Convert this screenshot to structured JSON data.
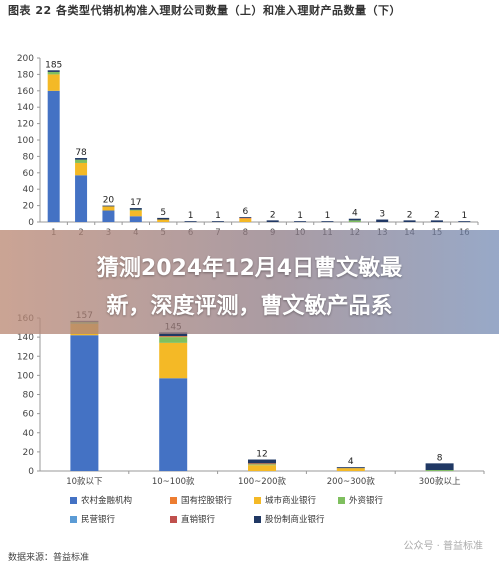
{
  "title": "图表 22 各类型代销机构准入理财公司数量（上）和准入理财产品数量（下）",
  "banner": {
    "line1": "猜测2024年12月4日曹文敏最",
    "line2": "新，深度评测，曹文敏产品系"
  },
  "source": "数据来源：普益标准",
  "watermark": "公众号 · 普益标准",
  "colors": {
    "农村金融机构": "#4472c4",
    "国有控股银行": "#ed7d31",
    "城市商业银行": "#f4b926",
    "外资银行": "#7fbf5f",
    "民营银行": "#5b9bd5",
    "直销银行": "#c0504d",
    "股份制商业银行": "#203864"
  },
  "legend": [
    {
      "name": "农村金融机构",
      "color": "#4472c4"
    },
    {
      "name": "国有控股银行",
      "color": "#ed7d31"
    },
    {
      "name": "城市商业银行",
      "color": "#f4b926"
    },
    {
      "name": "外资银行",
      "color": "#7fbf5f"
    },
    {
      "name": "民营银行",
      "color": "#5b9bd5"
    },
    {
      "name": "直销银行",
      "color": "#c0504d"
    },
    {
      "name": "股份制商业银行",
      "color": "#203864"
    }
  ],
  "chart_data": [
    {
      "type": "bar",
      "stacked": true,
      "categories": [
        "1",
        "2",
        "3",
        "4",
        "5",
        "6",
        "7",
        "8",
        "9",
        "10",
        "11",
        "12",
        "13",
        "14",
        "15",
        "16"
      ],
      "totals": [
        185,
        78,
        20,
        17,
        5,
        1,
        1,
        6,
        2,
        1,
        1,
        4,
        3,
        2,
        2,
        1
      ],
      "series": [
        {
          "name": "农村金融机构",
          "values": [
            160,
            57,
            14,
            7,
            0,
            0,
            0,
            0,
            0,
            0,
            0,
            0,
            0,
            0,
            0,
            0
          ]
        },
        {
          "name": "城市商业银行",
          "values": [
            20,
            15,
            5,
            7,
            3,
            0,
            0,
            4,
            0,
            0,
            0,
            0,
            0,
            0,
            0,
            0
          ]
        },
        {
          "name": "外资银行",
          "values": [
            3,
            4,
            0,
            1,
            0,
            0,
            0,
            0,
            0,
            0,
            0,
            2,
            0,
            0,
            0,
            0
          ]
        },
        {
          "name": "国有控股银行",
          "values": [
            0,
            0,
            0,
            0,
            0,
            0,
            0,
            1,
            0,
            0,
            0,
            0,
            0,
            0,
            0,
            0
          ]
        },
        {
          "name": "股份制商业银行",
          "values": [
            2,
            2,
            1,
            2,
            2,
            1,
            1,
            1,
            2,
            1,
            1,
            2,
            3,
            2,
            2,
            1
          ]
        }
      ],
      "ylim": [
        0,
        200
      ],
      "yticks": [
        0,
        20,
        40,
        60,
        80,
        100,
        120,
        140,
        160,
        180,
        200
      ],
      "grid": false
    },
    {
      "type": "bar",
      "stacked": true,
      "categories": [
        "10款以下",
        "10~100款",
        "100~200款",
        "200~300款",
        "300款以上"
      ],
      "totals": [
        157,
        145,
        12,
        4,
        8
      ],
      "series": [
        {
          "name": "农村金融机构",
          "values": [
            142,
            97,
            0,
            0,
            0
          ]
        },
        {
          "name": "城市商业银行",
          "values": [
            12,
            37,
            6,
            3,
            0
          ]
        },
        {
          "name": "外资银行",
          "values": [
            2,
            6,
            1,
            0,
            1
          ]
        },
        {
          "name": "国有控股银行",
          "values": [
            0,
            1,
            1,
            0,
            0
          ]
        },
        {
          "name": "股份制商业银行",
          "values": [
            1,
            4,
            4,
            1,
            7
          ]
        }
      ],
      "ylim": [
        0,
        160
      ],
      "yticks": [
        0,
        20,
        40,
        60,
        80,
        100,
        120,
        140,
        160
      ],
      "grid": false
    }
  ]
}
